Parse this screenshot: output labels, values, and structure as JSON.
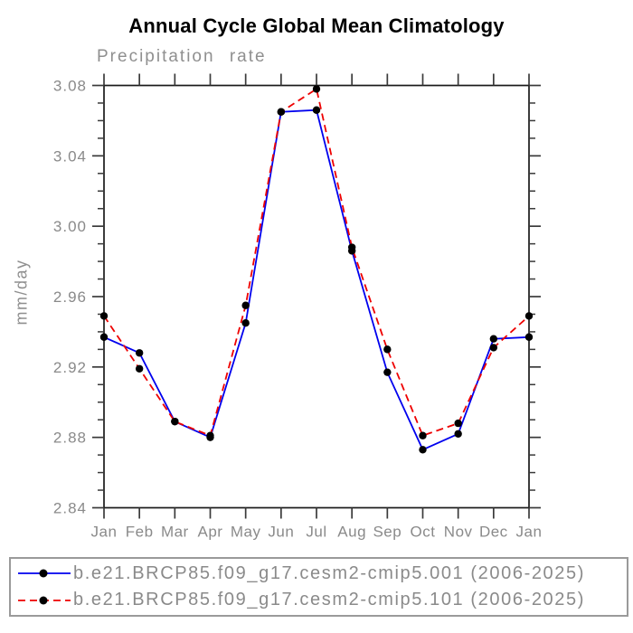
{
  "title": "Annual Cycle Global Mean Climatology",
  "chart_data": {
    "type": "line",
    "title": "Annual Cycle Global Mean Climatology",
    "subtitle": "Precipitation rate",
    "xlabel": "",
    "ylabel": "mm/day",
    "categories": [
      "Jan",
      "Feb",
      "Mar",
      "Apr",
      "May",
      "Jun",
      "Jul",
      "Aug",
      "Sep",
      "Oct",
      "Nov",
      "Dec",
      "Jan"
    ],
    "ylim": [
      2.84,
      3.08
    ],
    "ytick_labels": [
      "2.84",
      "2.88",
      "2.92",
      "2.96",
      "3.00",
      "3.04",
      "3.08"
    ],
    "ytick_step": 0.04,
    "yminor_step": 0.01,
    "grid": false,
    "legend_position": "bottom",
    "marker": "filled-black-circle",
    "series": [
      {
        "name": "b.e21.BRCP85.f09_g17.cesm2-cmip5.001 (2006-2025)",
        "color": "#0000ee",
        "line_style": "solid",
        "values": [
          2.937,
          2.928,
          2.889,
          2.88,
          2.945,
          3.065,
          3.066,
          2.986,
          2.917,
          2.873,
          2.882,
          2.936,
          2.937
        ]
      },
      {
        "name": "b.e21.BRCP85.f09_g17.cesm2-cmip5.101 (2006-2025)",
        "color": "#ee0000",
        "line_style": "dashed",
        "values": [
          2.949,
          2.919,
          2.889,
          2.881,
          2.955,
          3.065,
          3.078,
          2.988,
          2.93,
          2.881,
          2.888,
          2.931,
          2.949
        ]
      }
    ]
  },
  "colors": {
    "frame": "#1a1a1a",
    "ticks": "#3a3a3a",
    "label_gray": "#8a8a8a",
    "marker": "#000000",
    "legend_border": "#9a9a9a"
  }
}
